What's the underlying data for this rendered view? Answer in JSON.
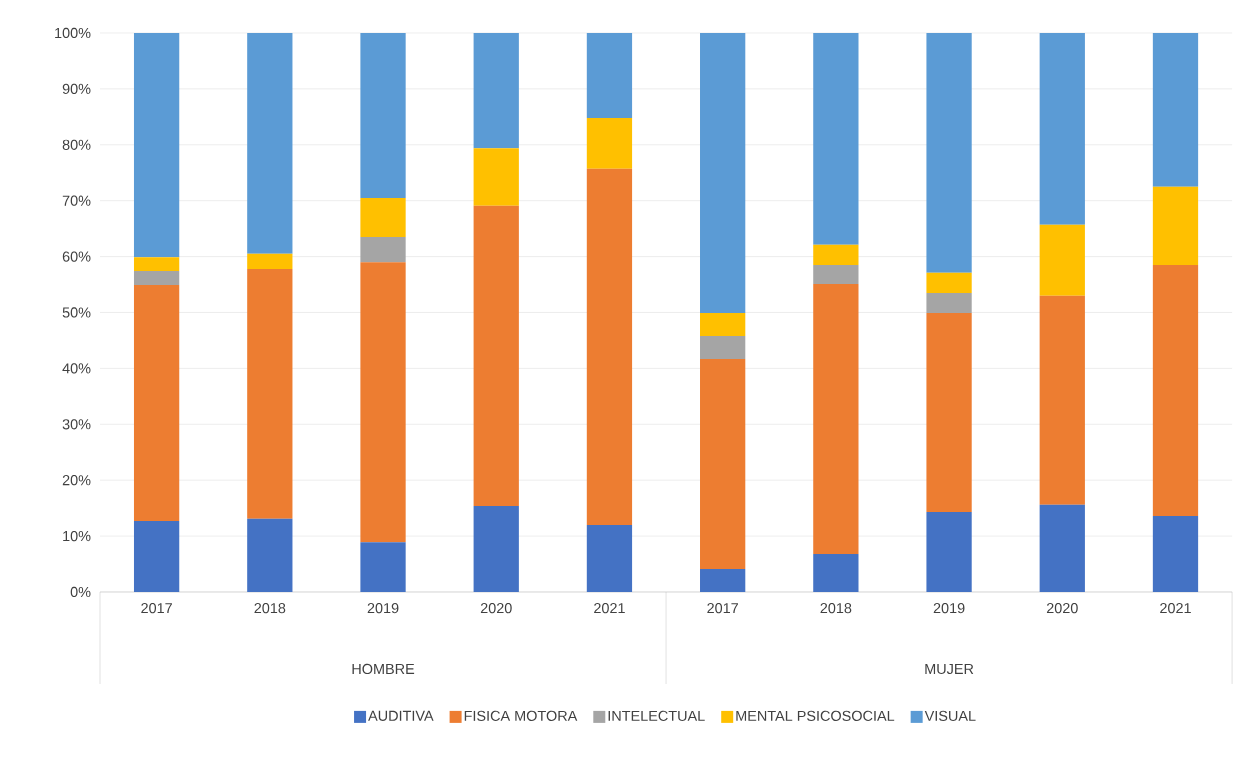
{
  "chart_data": {
    "type": "bar",
    "stacked": true,
    "categories": [
      "2017",
      "2018",
      "2019",
      "2020",
      "2021",
      "2017",
      "2018",
      "2019",
      "2020",
      "2021"
    ],
    "annotations": [
      "HOMBRE",
      "MUJER"
    ],
    "series": [
      {
        "name": "AUDITIVA",
        "color": "#4472c4",
        "values": [
          12.7,
          13.1,
          8.9,
          15.4,
          12.0,
          4.1,
          6.8,
          14.3,
          15.6,
          13.6
        ]
      },
      {
        "name": "FISICA MOTORA",
        "color": "#ed7d31",
        "values": [
          42.2,
          44.7,
          50.1,
          53.7,
          63.7,
          37.6,
          48.3,
          35.6,
          37.4,
          44.9
        ]
      },
      {
        "name": "INTELECTUAL",
        "color": "#a5a5a5",
        "values": [
          2.5,
          0,
          4.5,
          0,
          0,
          4.1,
          3.4,
          3.6,
          0,
          0
        ]
      },
      {
        "name": "MENTAL PSICOSOCIAL",
        "color": "#ffc000",
        "values": [
          2.5,
          2.7,
          7.0,
          10.3,
          9.1,
          4.1,
          3.6,
          3.6,
          12.7,
          14.0
        ]
      },
      {
        "name": "VISUAL",
        "color": "#5b9bd5",
        "values": [
          40.1,
          39.5,
          29.5,
          20.6,
          15.2,
          50.1,
          37.9,
          42.9,
          34.3,
          27.5
        ]
      }
    ],
    "ylim": [
      0,
      100
    ],
    "yticks": [
      {
        "value": 0,
        "label": "0%"
      },
      {
        "value": 10,
        "label": "10%"
      },
      {
        "value": 20,
        "label": "20%"
      },
      {
        "value": 30,
        "label": "30%"
      },
      {
        "value": 40,
        "label": "40%"
      },
      {
        "value": 50,
        "label": "50%"
      },
      {
        "value": 60,
        "label": "60%"
      },
      {
        "value": 70,
        "label": "70%"
      },
      {
        "value": 80,
        "label": "80%"
      },
      {
        "value": 90,
        "label": "90%"
      },
      {
        "value": 100,
        "label": "100%"
      }
    ],
    "grid": "y",
    "legend": "bottom"
  }
}
